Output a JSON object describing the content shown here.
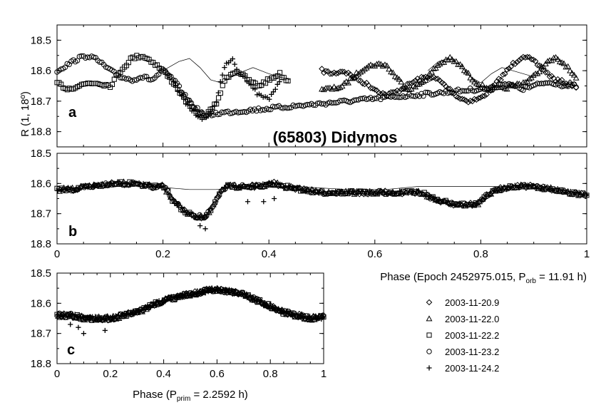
{
  "chart_data": [
    {
      "panel": "a",
      "type": "scatter",
      "title": "(65803) Didymos",
      "ylabel": "R (1, 18º)",
      "xlim": [
        0,
        1
      ],
      "ylim": [
        18.85,
        18.45
      ],
      "y_inverted": true,
      "y_ticks": [
        "18.5",
        "18.6",
        "18.7",
        "18.8"
      ],
      "notes": "Unreduced composite lightcurve; dense overlapping markers trace primary rotation plus mutual events.",
      "series": [
        {
          "name": "2003-11-20.9",
          "marker": "diamond",
          "points": [
            [
              0.5,
              18.6
            ],
            [
              0.52,
              18.61
            ],
            [
              0.54,
              18.6
            ],
            [
              0.56,
              18.62
            ],
            [
              0.58,
              18.64
            ],
            [
              0.6,
              18.66
            ],
            [
              0.62,
              18.68
            ],
            [
              0.64,
              18.67
            ],
            [
              0.66,
              18.65
            ],
            [
              0.68,
              18.63
            ],
            [
              0.7,
              18.62
            ],
            [
              0.72,
              18.63
            ],
            [
              0.74,
              18.66
            ],
            [
              0.76,
              18.69
            ],
            [
              0.78,
              18.7
            ],
            [
              0.8,
              18.69
            ],
            [
              0.82,
              18.66
            ],
            [
              0.84,
              18.62
            ],
            [
              0.86,
              18.58
            ],
            [
              0.88,
              18.55
            ],
            [
              0.9,
              18.57
            ],
            [
              0.92,
              18.6
            ],
            [
              0.94,
              18.63
            ],
            [
              0.96,
              18.64
            ],
            [
              0.98,
              18.65
            ]
          ]
        },
        {
          "name": "2003-11-22.0",
          "marker": "triangle",
          "points": [
            [
              0.5,
              18.66
            ],
            [
              0.52,
              18.66
            ],
            [
              0.54,
              18.65
            ],
            [
              0.56,
              18.62
            ],
            [
              0.58,
              18.59
            ],
            [
              0.6,
              18.58
            ],
            [
              0.62,
              18.58
            ],
            [
              0.64,
              18.62
            ],
            [
              0.66,
              18.66
            ],
            [
              0.68,
              18.65
            ],
            [
              0.7,
              18.62
            ],
            [
              0.72,
              18.58
            ],
            [
              0.74,
              18.56
            ],
            [
              0.76,
              18.58
            ],
            [
              0.78,
              18.62
            ],
            [
              0.8,
              18.65
            ],
            [
              0.82,
              18.66
            ],
            [
              0.84,
              18.66
            ],
            [
              0.86,
              18.65
            ],
            [
              0.88,
              18.64
            ],
            [
              0.9,
              18.62
            ],
            [
              0.92,
              18.58
            ],
            [
              0.94,
              18.56
            ],
            [
              0.96,
              18.58
            ],
            [
              0.98,
              18.63
            ]
          ]
        },
        {
          "name": "2003-11-22.2",
          "marker": "square",
          "points": [
            [
              0.0,
              18.64
            ],
            [
              0.02,
              18.66
            ],
            [
              0.04,
              18.65
            ],
            [
              0.06,
              18.64
            ],
            [
              0.08,
              18.64
            ],
            [
              0.1,
              18.65
            ],
            [
              0.12,
              18.6
            ],
            [
              0.14,
              18.56
            ],
            [
              0.16,
              18.55
            ],
            [
              0.18,
              18.57
            ],
            [
              0.2,
              18.6
            ],
            [
              0.22,
              18.64
            ],
            [
              0.24,
              18.69
            ],
            [
              0.26,
              18.73
            ],
            [
              0.28,
              18.75
            ],
            [
              0.3,
              18.71
            ],
            [
              0.32,
              18.62
            ],
            [
              0.34,
              18.6
            ],
            [
              0.36,
              18.63
            ],
            [
              0.38,
              18.65
            ],
            [
              0.4,
              18.63
            ],
            [
              0.42,
              18.61
            ],
            [
              0.44,
              18.64
            ]
          ]
        },
        {
          "name": "2003-11-23.2",
          "marker": "circle",
          "points": [
            [
              0.0,
              18.6
            ],
            [
              0.02,
              18.58
            ],
            [
              0.04,
              18.56
            ],
            [
              0.06,
              18.55
            ],
            [
              0.08,
              18.57
            ],
            [
              0.1,
              18.6
            ],
            [
              0.12,
              18.62
            ],
            [
              0.14,
              18.63
            ],
            [
              0.16,
              18.62
            ],
            [
              0.18,
              18.63
            ],
            [
              0.2,
              18.6
            ],
            [
              0.22,
              18.63
            ],
            [
              0.24,
              18.68
            ],
            [
              0.26,
              18.72
            ],
            [
              0.28,
              18.75
            ],
            [
              0.3,
              18.74
            ],
            [
              0.8,
              18.66
            ],
            [
              0.82,
              18.66
            ],
            [
              0.84,
              18.64
            ],
            [
              0.86,
              18.65
            ],
            [
              0.88,
              18.66
            ],
            [
              0.9,
              18.65
            ],
            [
              0.92,
              18.64
            ],
            [
              0.94,
              18.64
            ],
            [
              0.96,
              18.65
            ],
            [
              0.98,
              18.65
            ]
          ]
        },
        {
          "name": "2003-11-24.2",
          "marker": "plus",
          "points": [
            [
              0.22,
              18.64
            ],
            [
              0.24,
              18.7
            ],
            [
              0.26,
              18.74
            ],
            [
              0.28,
              18.76
            ],
            [
              0.3,
              18.71
            ],
            [
              0.31,
              18.62
            ],
            [
              0.32,
              18.58
            ],
            [
              0.33,
              18.56
            ],
            [
              0.34,
              18.6
            ],
            [
              0.36,
              18.63
            ],
            [
              0.38,
              18.68
            ],
            [
              0.4,
              18.69
            ],
            [
              0.42,
              18.64
            ]
          ]
        }
      ],
      "model_curves": [
        [
          [
            0.2,
            18.6
          ],
          [
            0.23,
            18.57
          ],
          [
            0.25,
            18.56
          ],
          [
            0.27,
            18.59
          ],
          [
            0.29,
            18.63
          ],
          [
            0.31,
            18.64
          ],
          [
            0.34,
            18.61
          ],
          [
            0.37,
            18.59
          ],
          [
            0.4,
            18.61
          ],
          [
            0.44,
            18.63
          ]
        ],
        [
          [
            0.7,
            18.6
          ],
          [
            0.72,
            18.57
          ],
          [
            0.74,
            18.56
          ],
          [
            0.76,
            18.58
          ],
          [
            0.78,
            18.62
          ],
          [
            0.8,
            18.64
          ],
          [
            0.82,
            18.61
          ],
          [
            0.84,
            18.59
          ],
          [
            0.86,
            18.6
          ],
          [
            0.9,
            18.62
          ]
        ]
      ]
    },
    {
      "panel": "b",
      "type": "scatter",
      "xlim": [
        0,
        1
      ],
      "ylim": [
        18.8,
        18.5
      ],
      "y_inverted": true,
      "y_ticks": [
        "18.5",
        "18.6",
        "18.7",
        "18.8"
      ],
      "x_ticks": [
        "0",
        "0.2",
        "0.4",
        "0.6",
        "0.8",
        "1"
      ],
      "xlabel": "Phase (Epoch 2452975.015, P",
      "xlabel_sub": "orb",
      "xlabel_tail": " = 11.91 h)",
      "notes": "Secondary (orbital) lightcurve after subtracting primary rotation; mutual events near phase 0.25 and 0.75.",
      "points": [
        [
          0.0,
          18.62
        ],
        [
          0.03,
          18.62
        ],
        [
          0.06,
          18.61
        ],
        [
          0.1,
          18.6
        ],
        [
          0.14,
          18.6
        ],
        [
          0.18,
          18.61
        ],
        [
          0.2,
          18.61
        ],
        [
          0.21,
          18.63
        ],
        [
          0.22,
          18.66
        ],
        [
          0.24,
          18.69
        ],
        [
          0.26,
          18.71
        ],
        [
          0.28,
          18.71
        ],
        [
          0.29,
          18.69
        ],
        [
          0.3,
          18.66
        ],
        [
          0.31,
          18.62
        ],
        [
          0.32,
          18.61
        ],
        [
          0.35,
          18.61
        ],
        [
          0.38,
          18.61
        ],
        [
          0.41,
          18.6
        ],
        [
          0.43,
          18.61
        ],
        [
          0.46,
          18.62
        ],
        [
          0.5,
          18.63
        ],
        [
          0.55,
          18.63
        ],
        [
          0.6,
          18.63
        ],
        [
          0.63,
          18.63
        ],
        [
          0.65,
          18.63
        ],
        [
          0.67,
          18.63
        ],
        [
          0.69,
          18.63
        ],
        [
          0.7,
          18.64
        ],
        [
          0.71,
          18.65
        ],
        [
          0.73,
          18.66
        ],
        [
          0.75,
          18.67
        ],
        [
          0.77,
          18.67
        ],
        [
          0.79,
          18.67
        ],
        [
          0.8,
          18.66
        ],
        [
          0.81,
          18.64
        ],
        [
          0.83,
          18.62
        ],
        [
          0.86,
          18.61
        ],
        [
          0.9,
          18.61
        ],
        [
          0.94,
          18.62
        ],
        [
          0.97,
          18.63
        ],
        [
          1.0,
          18.64
        ]
      ],
      "outliers": [
        [
          0.27,
          18.74
        ],
        [
          0.28,
          18.75
        ],
        [
          0.36,
          18.66
        ],
        [
          0.39,
          18.66
        ],
        [
          0.41,
          18.65
        ],
        [
          0.07,
          18.61
        ]
      ],
      "model_curve": [
        [
          0.18,
          18.61
        ],
        [
          0.25,
          18.62
        ],
        [
          0.3,
          18.62
        ],
        [
          0.36,
          18.61
        ],
        [
          0.45,
          18.61
        ],
        [
          0.55,
          18.62
        ],
        [
          0.62,
          18.62
        ],
        [
          0.68,
          18.61
        ],
        [
          0.75,
          18.61
        ],
        [
          0.82,
          18.61
        ],
        [
          0.86,
          18.61
        ]
      ]
    },
    {
      "panel": "c",
      "type": "scatter",
      "xlim": [
        0,
        1
      ],
      "ylim": [
        18.8,
        18.5
      ],
      "y_inverted": true,
      "y_ticks": [
        "18.5",
        "18.6",
        "18.7",
        "18.8"
      ],
      "x_ticks": [
        "0",
        "0.2",
        "0.4",
        "0.6",
        "0.8",
        "1"
      ],
      "xlabel": "Phase (P",
      "xlabel_sub": "prim",
      "xlabel_tail": " = 2.2592 h)",
      "notes": "Primary rotational lightcurve, single broad maximum near phase 0.6.",
      "points": [
        [
          0.0,
          18.64
        ],
        [
          0.05,
          18.64
        ],
        [
          0.1,
          18.65
        ],
        [
          0.15,
          18.65
        ],
        [
          0.2,
          18.65
        ],
        [
          0.25,
          18.64
        ],
        [
          0.3,
          18.63
        ],
        [
          0.35,
          18.61
        ],
        [
          0.4,
          18.59
        ],
        [
          0.45,
          18.58
        ],
        [
          0.5,
          18.57
        ],
        [
          0.55,
          18.56
        ],
        [
          0.6,
          18.555
        ],
        [
          0.65,
          18.56
        ],
        [
          0.7,
          18.57
        ],
        [
          0.75,
          18.59
        ],
        [
          0.8,
          18.61
        ],
        [
          0.85,
          18.63
        ],
        [
          0.9,
          18.64
        ],
        [
          0.95,
          18.65
        ],
        [
          1.0,
          18.645
        ]
      ],
      "outliers": [
        [
          0.1,
          18.7
        ],
        [
          0.18,
          18.69
        ],
        [
          0.05,
          18.67
        ],
        [
          0.08,
          18.68
        ]
      ]
    }
  ],
  "legend": {
    "entries": [
      {
        "label": "2003-11-20.9",
        "marker": "diamond"
      },
      {
        "label": "2003-11-22.0",
        "marker": "triangle"
      },
      {
        "label": "2003-11-22.2",
        "marker": "square"
      },
      {
        "label": "2003-11-23.2",
        "marker": "circle"
      },
      {
        "label": "2003-11-24.2",
        "marker": "plus"
      }
    ]
  },
  "labels": {
    "title": "(65803) Didymos",
    "ylabel": "R (1, 18º)",
    "panel_a": "a",
    "panel_b": "b",
    "panel_c": "c",
    "xlabel_b_pre": "Phase (Epoch 2452975.015, P",
    "xlabel_b_sub": "orb",
    "xlabel_b_post": " = 11.91 h)",
    "xlabel_c_pre": "Phase (P",
    "xlabel_c_sub": "prim",
    "xlabel_c_post": " = 2.2592 h)"
  }
}
